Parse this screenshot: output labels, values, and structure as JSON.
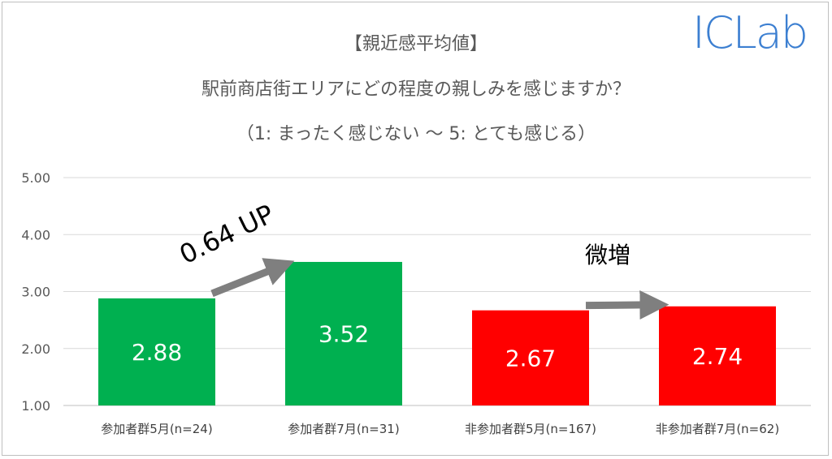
{
  "logo": {
    "text": "ICLab",
    "color": "#3c7fd1"
  },
  "chart_data": {
    "type": "bar",
    "title": "【親近感平均値】",
    "subtitle": [
      "駅前商店街エリアにどの程度の親しみを感じますか？",
      "（1: まったく感じない ～ 5: とても感じる）"
    ],
    "categories": [
      "参加者群5月(n=24)",
      "参加者群7月(n=31)",
      "非参加者群5月(n=167)",
      "非参加者群7月(n=62)"
    ],
    "values": [
      2.88,
      3.52,
      2.67,
      2.74
    ],
    "value_labels": [
      "2.88",
      "3.52",
      "2.67",
      "2.74"
    ],
    "colors": [
      "#00b050",
      "#00b050",
      "#ff0000",
      "#ff0000"
    ],
    "ylim": [
      1.0,
      5.0
    ],
    "yticks": [
      "1.00",
      "2.00",
      "3.00",
      "4.00",
      "5.00"
    ],
    "grid": true,
    "xlabel": "",
    "ylabel": "",
    "annotations": [
      {
        "text": "0.64 UP",
        "from_category": 0,
        "to_category": 1
      },
      {
        "text": "微増",
        "from_category": 2,
        "to_category": 3
      }
    ]
  }
}
